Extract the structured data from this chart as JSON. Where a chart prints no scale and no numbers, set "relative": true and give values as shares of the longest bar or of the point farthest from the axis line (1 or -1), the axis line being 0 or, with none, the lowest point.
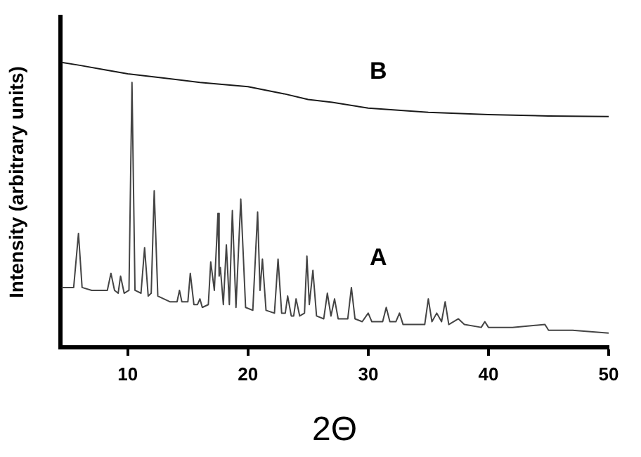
{
  "chart_data": {
    "type": "line",
    "xlabel": "2Θ",
    "ylabel": "Intensity (arbitrary units)",
    "relative": true,
    "xlim": [
      4.4,
      50
    ],
    "xticks": [
      10,
      20,
      30,
      40,
      50
    ],
    "grid": false,
    "legend": false,
    "marker": "none",
    "line_style": "solid",
    "series": [
      {
        "name": "B",
        "color": "#1a1a1a",
        "x": [
          4.5,
          6,
          8,
          10,
          13,
          16,
          20,
          23,
          25,
          27,
          30,
          35,
          40,
          45,
          50
        ],
        "values": [
          1,
          0.99,
          0.975,
          0.96,
          0.945,
          0.93,
          0.915,
          0.89,
          0.87,
          0.86,
          0.84,
          0.825,
          0.817,
          0.812,
          0.81
        ]
      },
      {
        "name": "A",
        "color": "#444444",
        "x": [
          4.5,
          5.5,
          5.9,
          6.2,
          7,
          8.3,
          8.6,
          8.9,
          9.2,
          9.4,
          9.7,
          10.1,
          10.35,
          10.6,
          11.1,
          11.4,
          11.7,
          11.95,
          12.2,
          12.5,
          13.5,
          14.1,
          14.3,
          14.5,
          15.0,
          15.2,
          15.5,
          15.8,
          16.0,
          16.2,
          16.7,
          16.9,
          17.2,
          17.5,
          17.6,
          17.7,
          17.95,
          18.2,
          18.45,
          18.7,
          19.0,
          19.4,
          19.8,
          20.4,
          20.8,
          21.0,
          21.2,
          21.5,
          22.2,
          22.5,
          22.8,
          23.1,
          23.3,
          23.6,
          23.8,
          24.0,
          24.3,
          24.7,
          24.9,
          25.1,
          25.4,
          25.7,
          26.3,
          26.6,
          26.9,
          27.2,
          27.5,
          28.3,
          28.6,
          28.9,
          29.5,
          30.0,
          30.3,
          31.2,
          31.5,
          31.8,
          32.3,
          32.6,
          32.9,
          34.7,
          35.0,
          35.3,
          35.7,
          36.1,
          36.4,
          36.7,
          37.5,
          38,
          39.4,
          39.7,
          40,
          42,
          44.7,
          45,
          47,
          50
        ],
        "values": [
          0.21,
          0.21,
          0.4,
          0.21,
          0.2,
          0.2,
          0.26,
          0.2,
          0.19,
          0.25,
          0.19,
          0.2,
          0.93,
          0.2,
          0.19,
          0.35,
          0.18,
          0.19,
          0.55,
          0.18,
          0.16,
          0.16,
          0.2,
          0.16,
          0.16,
          0.26,
          0.15,
          0.15,
          0.17,
          0.14,
          0.15,
          0.3,
          0.2,
          0.47,
          0.25,
          0.28,
          0.15,
          0.36,
          0.15,
          0.48,
          0.14,
          0.52,
          0.14,
          0.13,
          0.475,
          0.2,
          0.31,
          0.13,
          0.12,
          0.31,
          0.12,
          0.12,
          0.18,
          0.11,
          0.11,
          0.17,
          0.11,
          0.12,
          0.32,
          0.15,
          0.27,
          0.11,
          0.1,
          0.19,
          0.11,
          0.17,
          0.1,
          0.1,
          0.21,
          0.1,
          0.09,
          0.12,
          0.09,
          0.09,
          0.14,
          0.09,
          0.09,
          0.12,
          0.08,
          0.08,
          0.17,
          0.09,
          0.12,
          0.09,
          0.16,
          0.08,
          0.1,
          0.08,
          0.07,
          0.09,
          0.07,
          0.07,
          0.08,
          0.06,
          0.06,
          0.05
        ]
      }
    ]
  }
}
